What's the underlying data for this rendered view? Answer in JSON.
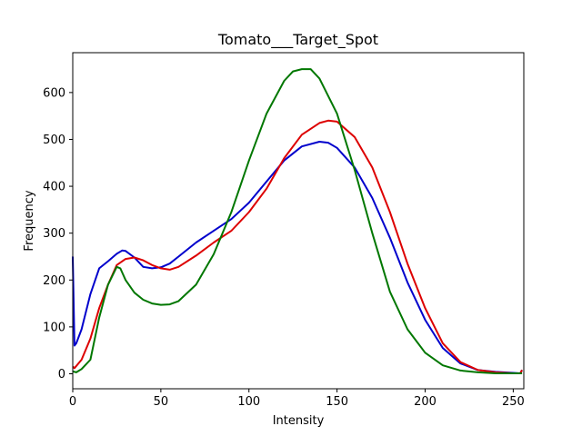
{
  "chart_data": {
    "type": "line",
    "title": "Tomato___Target_Spot",
    "xlabel": "Intensity",
    "ylabel": "Frequency",
    "xlim": [
      0,
      256
    ],
    "ylim": [
      -32,
      685
    ],
    "xticks": [
      0,
      50,
      100,
      150,
      200,
      250
    ],
    "yticks": [
      0,
      100,
      200,
      300,
      400,
      500,
      600
    ],
    "grid": false,
    "legend": "none",
    "series": [
      {
        "color": "#0000cc",
        "x": [
          0,
          1,
          2,
          5,
          10,
          15,
          20,
          25,
          28,
          30,
          35,
          40,
          45,
          50,
          55,
          60,
          70,
          80,
          90,
          100,
          110,
          120,
          130,
          140,
          145,
          150,
          160,
          170,
          180,
          190,
          200,
          210,
          220,
          230,
          240,
          250,
          254,
          255
        ],
        "values": [
          250,
          60,
          65,
          95,
          170,
          225,
          240,
          256,
          263,
          262,
          248,
          228,
          225,
          227,
          235,
          250,
          280,
          305,
          330,
          365,
          410,
          455,
          485,
          495,
          493,
          482,
          440,
          375,
          290,
          195,
          115,
          55,
          22,
          8,
          4,
          2,
          1,
          8
        ]
      },
      {
        "color": "#dd0000",
        "x": [
          0,
          1,
          5,
          10,
          15,
          20,
          25,
          30,
          35,
          40,
          45,
          50,
          55,
          60,
          70,
          80,
          90,
          100,
          110,
          120,
          130,
          140,
          145,
          150,
          160,
          170,
          180,
          190,
          200,
          210,
          220,
          230,
          240,
          250,
          254,
          255
        ],
        "values": [
          15,
          12,
          30,
          75,
          140,
          190,
          232,
          245,
          248,
          242,
          232,
          225,
          222,
          228,
          252,
          280,
          305,
          345,
          395,
          460,
          510,
          535,
          540,
          538,
          505,
          440,
          345,
          235,
          140,
          65,
          25,
          8,
          3,
          1,
          1,
          8
        ]
      },
      {
        "color": "#007700",
        "x": [
          0,
          2,
          5,
          10,
          15,
          20,
          25,
          27,
          30,
          35,
          40,
          45,
          50,
          55,
          60,
          70,
          80,
          90,
          100,
          110,
          120,
          125,
          130,
          135,
          140,
          150,
          160,
          170,
          180,
          190,
          200,
          210,
          220,
          230,
          240,
          250,
          255
        ],
        "values": [
          5,
          3,
          10,
          30,
          120,
          190,
          228,
          225,
          200,
          173,
          158,
          150,
          147,
          148,
          155,
          190,
          255,
          345,
          455,
          555,
          625,
          645,
          650,
          650,
          630,
          555,
          435,
          300,
          175,
          95,
          45,
          18,
          7,
          3,
          1,
          1,
          1
        ]
      }
    ]
  }
}
